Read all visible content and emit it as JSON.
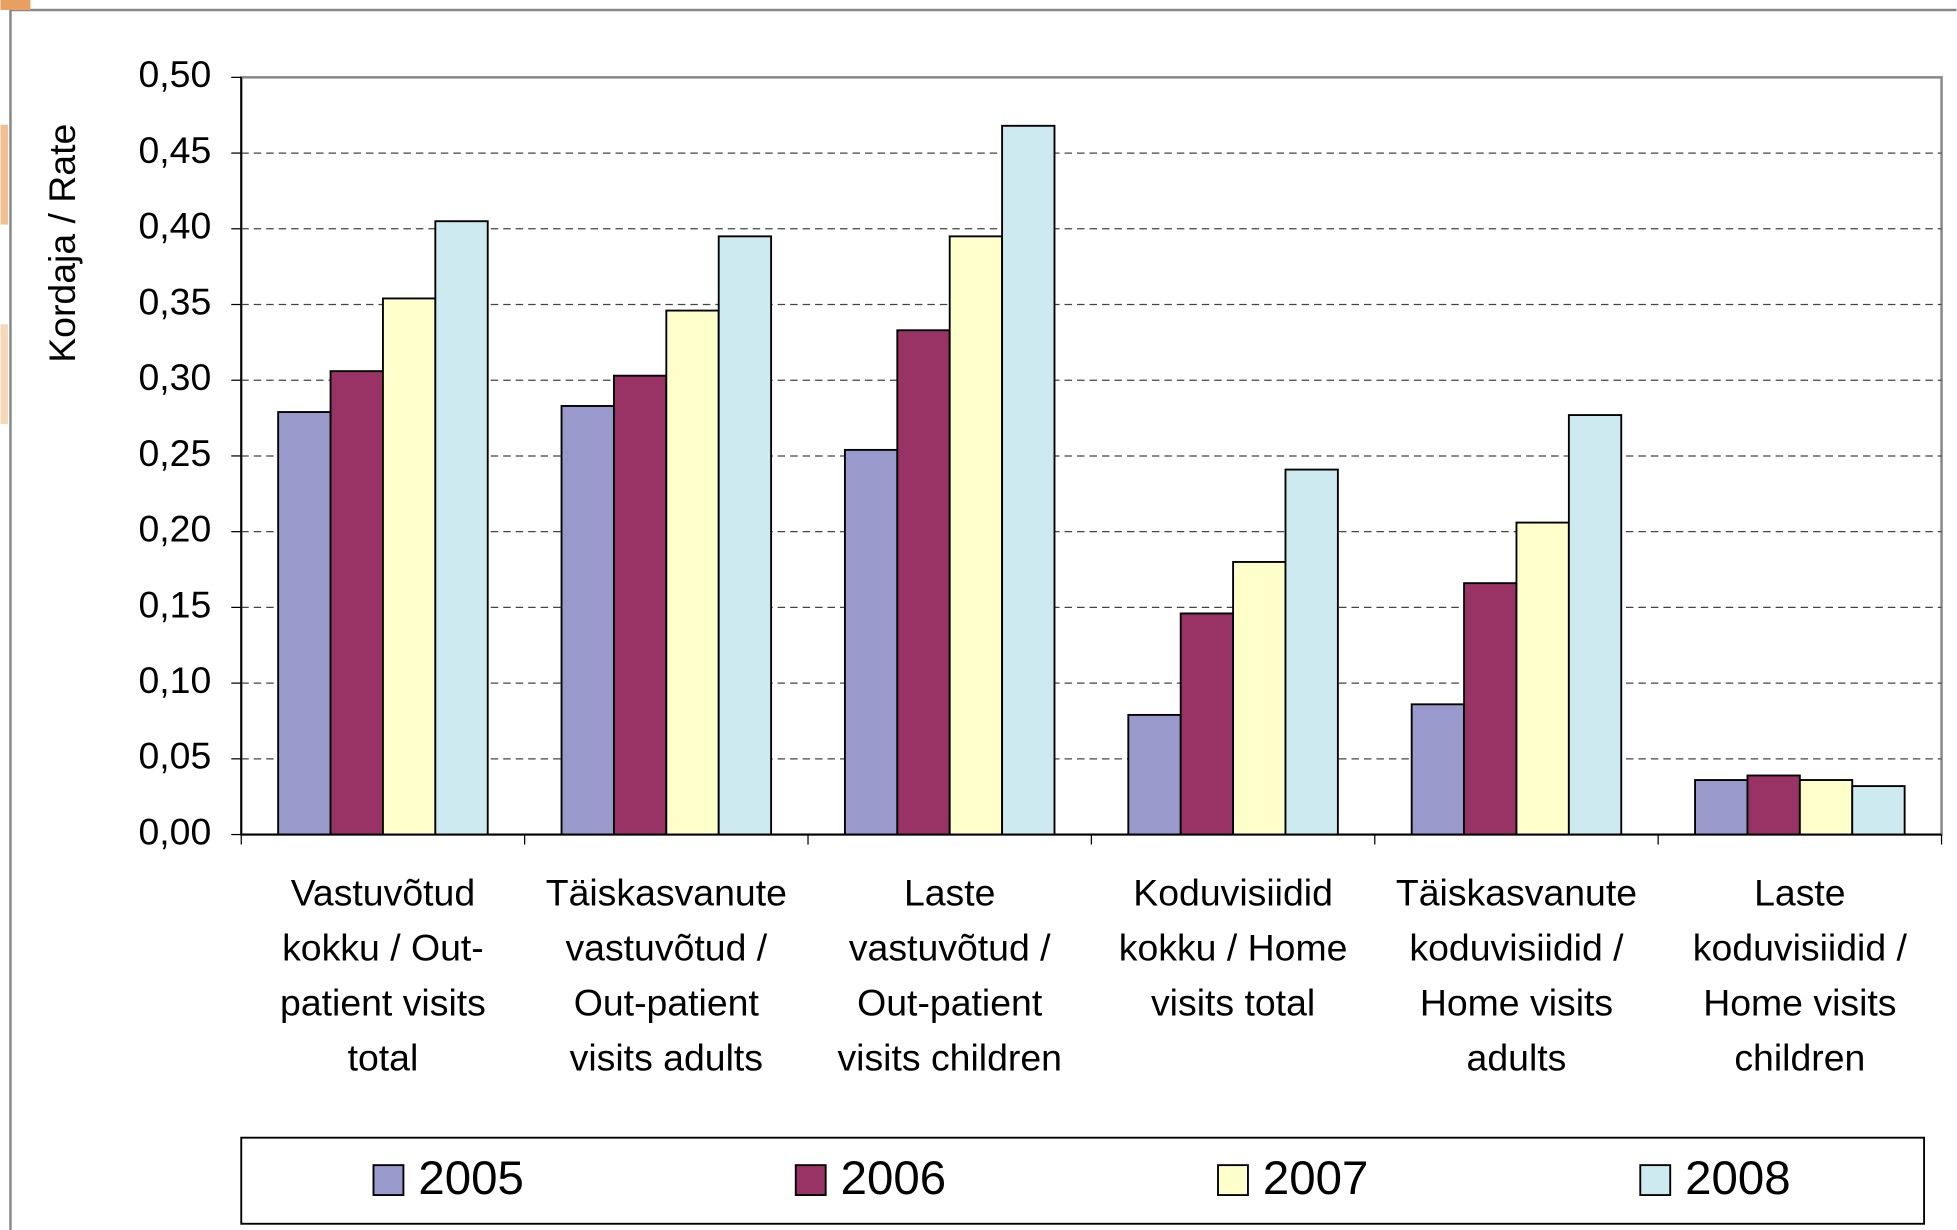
{
  "chart_data": {
    "type": "bar",
    "ylabel": "Kordaja / Rate",
    "categories": [
      "Vastuvõtud\nkokku / Out-\npatient visits\ntotal",
      "Täiskasvanute\nvastuvõtud /\nOut-patient\nvisits adults",
      "Laste\nvastuvõtud /\nOut-patient\nvisits children",
      "Koduvisiidid\nkokku / Home\nvisits total",
      "Täiskasvanute\nkoduvisiidid /\nHome visits\nadults",
      "Laste\nkoduvisiidid /\nHome visits\nchildren"
    ],
    "series": [
      {
        "name": "2005",
        "color": "#9999cc",
        "values": [
          0.279,
          0.283,
          0.254,
          0.079,
          0.086,
          0.036
        ]
      },
      {
        "name": "2006",
        "color": "#993366",
        "values": [
          0.306,
          0.303,
          0.333,
          0.146,
          0.166,
          0.039
        ]
      },
      {
        "name": "2007",
        "color": "#ffffcc",
        "values": [
          0.354,
          0.346,
          0.395,
          0.18,
          0.206,
          0.036
        ]
      },
      {
        "name": "2008",
        "color": "#cceaf0",
        "values": [
          0.405,
          0.395,
          0.468,
          0.241,
          0.277,
          0.032
        ]
      }
    ],
    "ylim": [
      0,
      0.5
    ],
    "yticks": [
      {
        "value": 0,
        "label": "0,00"
      },
      {
        "value": 0.05,
        "label": "0,05"
      },
      {
        "value": 0.1,
        "label": "0,10"
      },
      {
        "value": 0.15,
        "label": "0,15"
      },
      {
        "value": 0.2,
        "label": "0,20"
      },
      {
        "value": 0.25,
        "label": "0,25"
      },
      {
        "value": 0.3,
        "label": "0,30"
      },
      {
        "value": 0.35,
        "label": "0,35"
      },
      {
        "value": 0.4,
        "label": "0,40"
      },
      {
        "value": 0.45,
        "label": "0,45"
      },
      {
        "value": 0.5,
        "label": "0,50"
      }
    ],
    "grid": true,
    "legend": "bottom"
  }
}
